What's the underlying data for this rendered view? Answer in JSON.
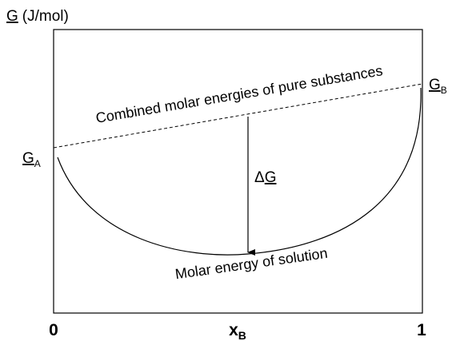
{
  "axis_title": {
    "symbol": "G",
    "unit": "(J/mol)"
  },
  "line_label": "Combined molar energies of pure substances",
  "curve_label": "Molar energy of solution",
  "difference_label": {
    "prefix": "Δ",
    "symbol": "G"
  },
  "left_point": {
    "symbol": "G",
    "sub": "A"
  },
  "right_point": {
    "symbol": "G",
    "sub": "B"
  },
  "x_axis": {
    "start": "0",
    "label": {
      "symbol": "x",
      "sub": "B"
    },
    "end": "1"
  }
}
